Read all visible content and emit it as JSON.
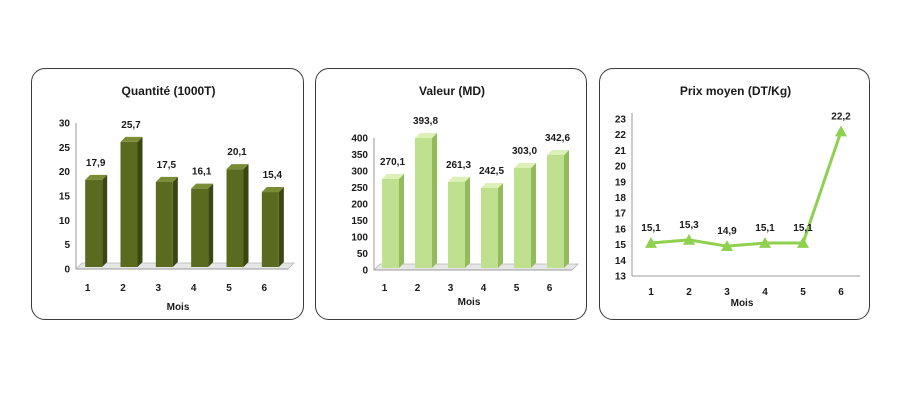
{
  "chart_data": [
    {
      "type": "bar",
      "title": "Quantité (1000T)",
      "xlabel": "Mois",
      "ylabel": "",
      "categories": [
        "1",
        "2",
        "3",
        "4",
        "5",
        "6"
      ],
      "values": [
        17.9,
        25.7,
        17.5,
        16.1,
        20.1,
        15.4
      ],
      "value_labels": [
        "17,9",
        "25,7",
        "17,5",
        "16,1",
        "20,1",
        "15,4"
      ],
      "ylim": [
        0,
        30
      ],
      "yticks": [
        "0",
        "5",
        "10",
        "15",
        "20",
        "25",
        "30"
      ],
      "yticks_values": [
        0,
        5,
        10,
        15,
        20,
        25,
        30
      ],
      "grid": false,
      "color": "#5a6b1f",
      "color_dark": "#3b4712",
      "color_light": "#7a8c36"
    },
    {
      "type": "bar",
      "title": "Valeur (MD)",
      "xlabel": "Mois",
      "ylabel": "",
      "categories": [
        "1",
        "2",
        "3",
        "4",
        "5",
        "6"
      ],
      "values": [
        270.1,
        393.8,
        261.3,
        242.5,
        303.0,
        342.6
      ],
      "value_labels": [
        "270,1",
        "393,8",
        "261,3",
        "242,5",
        "303,0",
        "342,6"
      ],
      "ylim": [
        0,
        400
      ],
      "yticks": [
        "0",
        "50",
        "100",
        "150",
        "200",
        "250",
        "300",
        "350",
        "400"
      ],
      "yticks_values": [
        0,
        50,
        100,
        150,
        200,
        250,
        300,
        350,
        400
      ],
      "grid": false,
      "color": "#bfe08e",
      "color_dark": "#93bb5c",
      "color_light": "#dcf0b8"
    },
    {
      "type": "line",
      "title": "Prix moyen (DT/Kg)",
      "xlabel": "Mois",
      "ylabel": "",
      "categories": [
        "1",
        "2",
        "3",
        "4",
        "5",
        "6"
      ],
      "values": [
        15.1,
        15.3,
        14.9,
        15.1,
        15.1,
        22.2
      ],
      "value_labels": [
        "15,1",
        "15,3",
        "14,9",
        "15,1",
        "15,1",
        "22,2"
      ],
      "ylim": [
        13,
        23
      ],
      "yticks": [
        "13",
        "14",
        "15",
        "16",
        "17",
        "18",
        "19",
        "20",
        "21",
        "22",
        "23"
      ],
      "yticks_values": [
        13,
        14,
        15,
        16,
        17,
        18,
        19,
        20,
        21,
        22,
        23
      ],
      "grid": false,
      "color": "#8fd14f"
    }
  ]
}
